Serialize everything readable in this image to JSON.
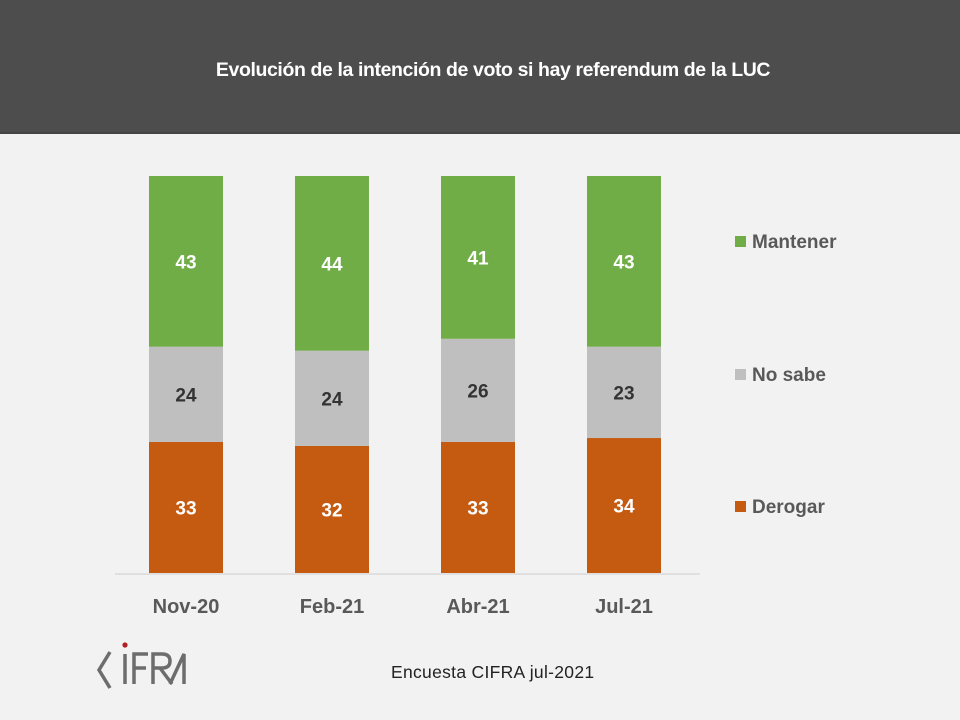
{
  "header": {
    "title": "Evolución de la intención de voto si hay referendum de la LUC"
  },
  "footer": {
    "source": "Encuesta CIFRA jul-2021",
    "logo_text": "CIFRA"
  },
  "colors": {
    "Mantener": "#70ad47",
    "No sabe": "#bfbfbf",
    "Derogar": "#c55a11"
  },
  "chart_data": {
    "type": "bar",
    "stacked": true,
    "title": "Evolución de la intención de voto si hay referendum de la LUC",
    "xlabel": "",
    "ylabel": "",
    "ylim": [
      0,
      100
    ],
    "grid": false,
    "legend_position": "right",
    "categories": [
      "Nov-20",
      "Feb-21",
      "Abr-21",
      "Jul-21"
    ],
    "series": [
      {
        "name": "Derogar",
        "values": [
          33,
          32,
          33,
          34
        ],
        "color": "#c55a11",
        "label_color": "#ffffff"
      },
      {
        "name": "No sabe",
        "values": [
          24,
          24,
          26,
          23
        ],
        "color": "#bfbfbf",
        "label_color": "#333333"
      },
      {
        "name": "Mantener",
        "values": [
          43,
          44,
          41,
          43
        ],
        "color": "#70ad47",
        "label_color": "#ffffff"
      }
    ],
    "legend": [
      "Mantener",
      "No sabe",
      "Derogar"
    ]
  }
}
